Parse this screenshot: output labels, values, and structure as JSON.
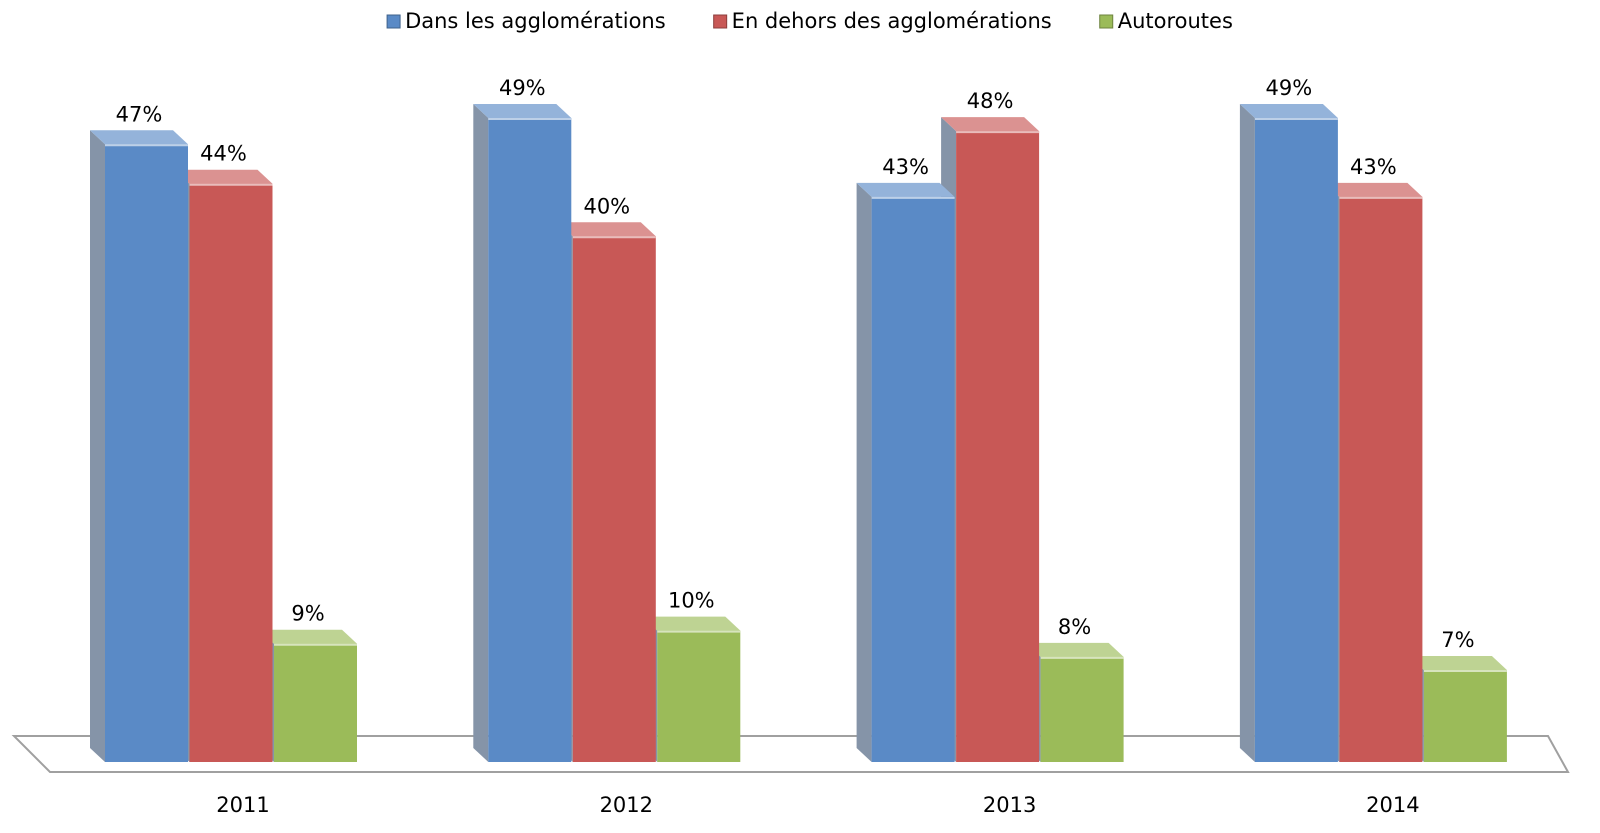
{
  "chart_data": {
    "type": "bar3d",
    "categories": [
      "2011",
      "2012",
      "2013",
      "2014"
    ],
    "series": [
      {
        "name": "Dans les agglomérations",
        "color": "#5a8ac6",
        "values": [
          47,
          49,
          43,
          49
        ],
        "value_labels": [
          "47%",
          "49%",
          "43%",
          "49%"
        ]
      },
      {
        "name": "En dehors des agglomérations",
        "color": "#c85856",
        "values": [
          44,
          40,
          48,
          43
        ],
        "value_labels": [
          "44%",
          "40%",
          "48%",
          "43%"
        ]
      },
      {
        "name": "Autoroutes",
        "color": "#9bbb59",
        "values": [
          9,
          10,
          8,
          7
        ],
        "value_labels": [
          "9%",
          "10%",
          "8%",
          "7%"
        ]
      }
    ],
    "legend": "top"
  }
}
